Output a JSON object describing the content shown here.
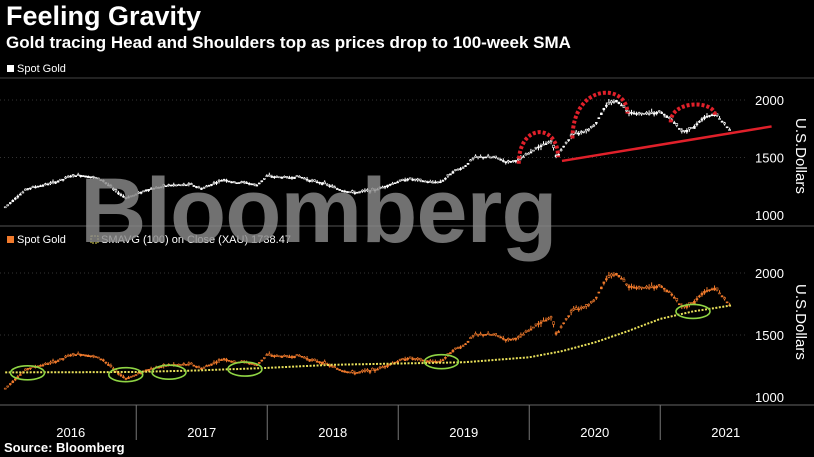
{
  "title": "Feeling Gravity",
  "subtitle": "Gold tracing Head and Shoulders top as prices drop to 100-week SMA",
  "source": "Source: Bloomberg",
  "watermark": "Bloomberg",
  "colors": {
    "background": "#000000",
    "spot_white": "#ffffff",
    "spot_orange": "#f07a2c",
    "sma": "#e8e05a",
    "pattern": "#e0202a",
    "circle": "#8fd444"
  },
  "chart_data": [
    {
      "type": "line",
      "panel": "top",
      "legend": [
        {
          "name": "Spot Gold",
          "color": "#ffffff"
        }
      ],
      "ylabel": "U.S.Dollars",
      "yticks": [
        1000,
        1500,
        2000
      ],
      "ylim": [
        900,
        2100
      ],
      "x_categories": [
        "2016",
        "2017",
        "2018",
        "2019",
        "2020",
        "2021"
      ],
      "series": [
        {
          "name": "Spot Gold",
          "x": [
            2016.0,
            2016.08,
            2016.17,
            2016.25,
            2016.33,
            2016.42,
            2016.5,
            2016.58,
            2016.67,
            2016.75,
            2016.83,
            2016.92,
            2017.0,
            2017.08,
            2017.17,
            2017.25,
            2017.33,
            2017.42,
            2017.5,
            2017.58,
            2017.67,
            2017.75,
            2017.83,
            2017.92,
            2018.0,
            2018.08,
            2018.17,
            2018.25,
            2018.33,
            2018.42,
            2018.5,
            2018.58,
            2018.67,
            2018.75,
            2018.83,
            2018.92,
            2019.0,
            2019.08,
            2019.17,
            2019.25,
            2019.33,
            2019.42,
            2019.5,
            2019.58,
            2019.67,
            2019.75,
            2019.83,
            2019.92,
            2020.0,
            2020.08,
            2020.17,
            2020.21,
            2020.25,
            2020.33,
            2020.42,
            2020.5,
            2020.58,
            2020.67,
            2020.75,
            2020.83,
            2020.92,
            2021.0,
            2021.08,
            2021.17,
            2021.25,
            2021.33,
            2021.42,
            2021.5,
            2021.54
          ],
          "y": [
            1070,
            1150,
            1230,
            1250,
            1270,
            1300,
            1340,
            1345,
            1330,
            1300,
            1220,
            1150,
            1180,
            1220,
            1240,
            1260,
            1260,
            1265,
            1230,
            1270,
            1310,
            1280,
            1285,
            1260,
            1340,
            1330,
            1325,
            1335,
            1300,
            1280,
            1245,
            1210,
            1195,
            1210,
            1220,
            1260,
            1290,
            1315,
            1300,
            1285,
            1290,
            1380,
            1415,
            1500,
            1505,
            1500,
            1460,
            1480,
            1540,
            1600,
            1640,
            1500,
            1580,
            1700,
            1720,
            1780,
            1950,
            2000,
            1900,
            1880,
            1880,
            1900,
            1840,
            1720,
            1760,
            1850,
            1880,
            1780,
            1730
          ]
        }
      ],
      "annotations": [
        {
          "type": "left-shoulder",
          "x_range": [
            2019.92,
            2020.22
          ],
          "peak": 1750
        },
        {
          "type": "head",
          "x_range": [
            2020.33,
            2020.75
          ],
          "peak": 2100
        },
        {
          "type": "right-shoulder",
          "x_range": [
            2021.08,
            2021.42
          ],
          "peak": 1950
        },
        {
          "type": "neckline",
          "x": [
            2020.25,
            2021.85
          ],
          "y": [
            1470,
            1770
          ]
        }
      ]
    },
    {
      "type": "line",
      "panel": "bottom",
      "legend": [
        {
          "name": "Spot Gold",
          "color": "#f07a2c"
        },
        {
          "name": "SMAVG (100)  on Close (XAU) 1738.47",
          "color": "#e8e05a"
        }
      ],
      "ylabel": "U.S.Dollars",
      "yticks": [
        1000,
        1500,
        2000
      ],
      "ylim": [
        950,
        2120
      ],
      "x_categories": [
        "2016",
        "2017",
        "2018",
        "2019",
        "2020",
        "2021"
      ],
      "series": [
        {
          "name": "Spot Gold",
          "same_as_top": true
        },
        {
          "name": "SMAVG (100)",
          "x": [
            2016.0,
            2016.5,
            2017.0,
            2017.5,
            2018.0,
            2018.5,
            2019.0,
            2019.5,
            2020.0,
            2020.25,
            2020.5,
            2020.75,
            2021.0,
            2021.25,
            2021.54
          ],
          "y": [
            1198,
            1200,
            1202,
            1215,
            1235,
            1260,
            1270,
            1280,
            1320,
            1370,
            1440,
            1530,
            1630,
            1690,
            1738
          ]
        }
      ],
      "circled_touches": [
        {
          "x": 2016.17,
          "y": 1195
        },
        {
          "x": 2016.92,
          "y": 1180
        },
        {
          "x": 2017.25,
          "y": 1200
        },
        {
          "x": 2017.83,
          "y": 1225
        },
        {
          "x": 2019.33,
          "y": 1285
        },
        {
          "x": 2021.25,
          "y": 1690
        }
      ]
    }
  ]
}
